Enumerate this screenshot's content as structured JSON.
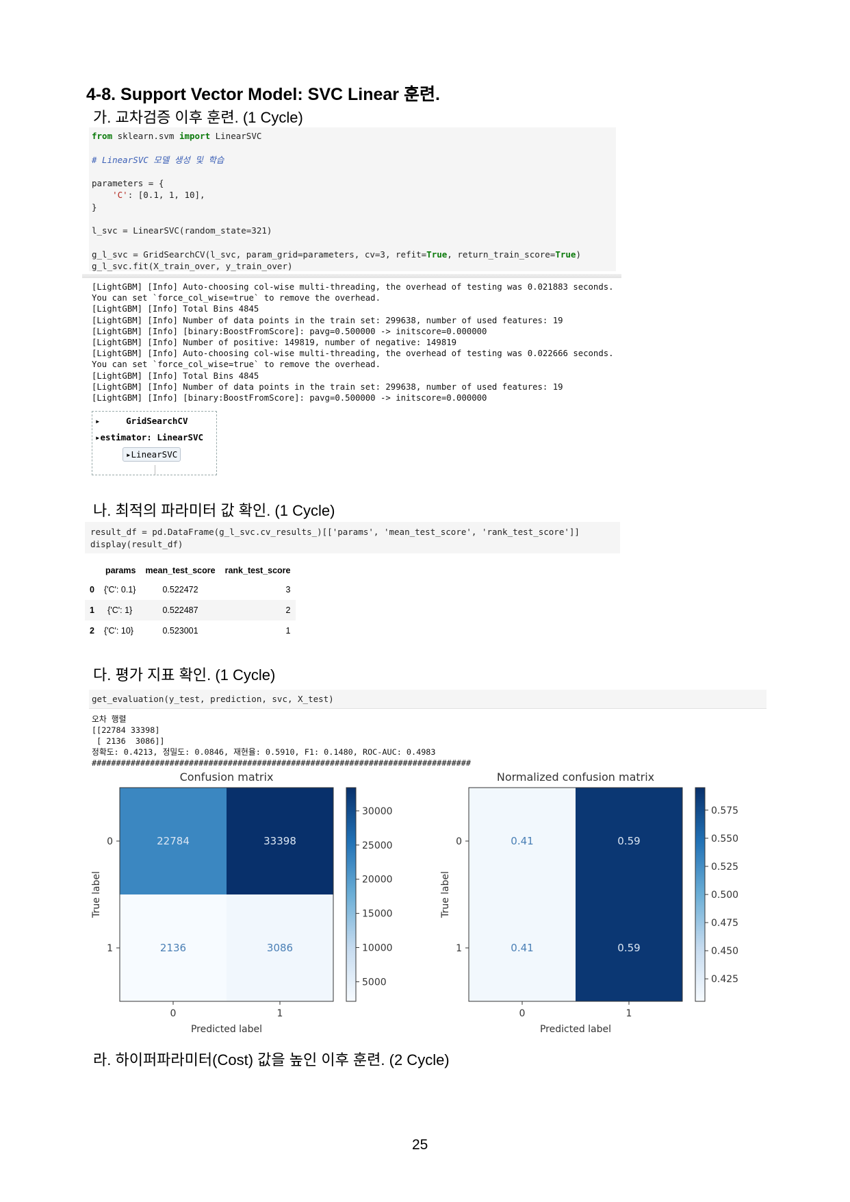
{
  "heading": "4-8. Support Vector Model: SVC Linear 훈련.",
  "sections": {
    "a": "가. 교차검증 이후 훈련. (1 Cycle)",
    "b": "나. 최적의 파라미터 값 확인. (1 Cycle)",
    "c": "다. 평가 지표 확인. (1 Cycle)",
    "d": "라. 하이퍼파라미터(Cost) 값을 높인 이후 훈련. (2 Cycle)"
  },
  "code1": {
    "line1_kw1": "from",
    "line1_mod": " sklearn.svm ",
    "line1_kw2": "import",
    "line1_cls": " LinearSVC",
    "comment": "# LinearSVC 모델 생성 및 학습",
    "params_open": "parameters = {",
    "params_key": "    'C'",
    "params_vals": ": [0.1, 1, 10],",
    "params_close": "}",
    "lsvc": "l_svc = LinearSVC(random_state=321)",
    "grid_a": "g_l_svc = GridSearchCV(l_svc, param_grid=parameters, cv=3, refit=",
    "grid_true1": "True",
    "grid_b": ", return_train_score=",
    "grid_true2": "True",
    "grid_c": ")",
    "fit": "g_l_svc.fit(X_train_over, y_train_over)"
  },
  "log_lines": [
    "[LightGBM] [Info] Auto-choosing col-wise multi-threading, the overhead of testing was 0.021883 seconds.",
    "You can set `force_col_wise=true` to remove the overhead.",
    "[LightGBM] [Info] Total Bins 4845",
    "[LightGBM] [Info] Number of data points in the train set: 299638, number of used features: 19",
    "[LightGBM] [Info] [binary:BoostFromScore]: pavg=0.500000 -> initscore=0.000000",
    "[LightGBM] [Info] Number of positive: 149819, number of negative: 149819",
    "[LightGBM] [Info] Auto-choosing col-wise multi-threading, the overhead of testing was 0.022666 seconds.",
    "You can set `force_col_wise=true` to remove the overhead.",
    "[LightGBM] [Info] Total Bins 4845",
    "[LightGBM] [Info] Number of data points in the train set: 299638, number of used features: 19",
    "[LightGBM] [Info] [binary:BoostFromScore]: pavg=0.500000 -> initscore=0.000000"
  ],
  "estimator": {
    "title": "GridSearchCV",
    "estimator_label": "estimator: LinearSVC",
    "inner": "LinearSVC"
  },
  "code2": {
    "line1": "result_df = pd.DataFrame(g_l_svc.cv_results_)[['params', 'mean_test_score', 'rank_test_score']]",
    "line2": "display(result_df)"
  },
  "result_table": {
    "columns": [
      "",
      "params",
      "mean_test_score",
      "rank_test_score"
    ],
    "rows": [
      [
        "0",
        "{'C': 0.1}",
        "0.522472",
        "3"
      ],
      [
        "1",
        "{'C': 1}",
        "0.522487",
        "2"
      ],
      [
        "2",
        "{'C': 10}",
        "0.523001",
        "1"
      ]
    ]
  },
  "code3": "get_evaluation(y_test, prediction, svc, X_test)",
  "eval_output": {
    "title": "오차 행렬",
    "matrix_line1": "[[22784 33398]",
    "matrix_line2": " [ 2136  3086]]",
    "metrics": "정확도: 0.4213, 정밀도: 0.0846, 재현율: 0.5910, F1: 0.1480, ROC-AUC: 0.4983",
    "hashes": "##############################################################################"
  },
  "chart_data": [
    {
      "type": "heatmap",
      "title": "Confusion matrix",
      "xlabel": "Predicted label",
      "ylabel": "True label",
      "x_ticks": [
        "0",
        "1"
      ],
      "y_ticks": [
        "0",
        "1"
      ],
      "values": [
        [
          22784,
          33398
        ],
        [
          2136,
          3086
        ]
      ],
      "cell_labels": [
        [
          "22784",
          "33398"
        ],
        [
          "2136",
          "3086"
        ]
      ],
      "colormap": "Blues",
      "vmin": 2136,
      "vmax": 33398,
      "colorbar_ticks": [
        "30000",
        "25000",
        "20000",
        "15000",
        "10000",
        "5000"
      ],
      "colorbar_values": [
        30000,
        25000,
        20000,
        15000,
        10000,
        5000
      ]
    },
    {
      "type": "heatmap",
      "title": "Normalized confusion matrix",
      "xlabel": "Predicted label",
      "ylabel": "True label",
      "x_ticks": [
        "0",
        "1"
      ],
      "y_ticks": [
        "0",
        "1"
      ],
      "values": [
        [
          0.41,
          0.59
        ],
        [
          0.41,
          0.59
        ]
      ],
      "cell_labels": [
        [
          "0.41",
          "0.59"
        ],
        [
          "0.41",
          "0.59"
        ]
      ],
      "colormap": "Blues",
      "vmin": 0.405,
      "vmax": 0.595,
      "colorbar_ticks": [
        "0.575",
        "0.550",
        "0.525",
        "0.500",
        "0.475",
        "0.450",
        "0.425"
      ],
      "colorbar_values": [
        0.575,
        0.55,
        0.525,
        0.5,
        0.475,
        0.45,
        0.425
      ]
    }
  ],
  "page_number": "25"
}
